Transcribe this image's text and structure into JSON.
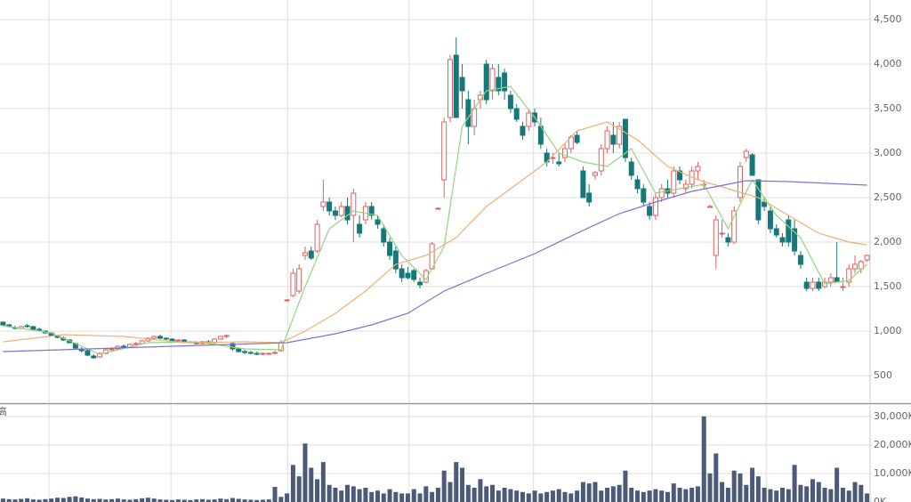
{
  "chart_data": [
    {
      "type": "candlestick",
      "xlim": [
        -0.5,
        143.5
      ],
      "ylim": [
        200,
        4720
      ],
      "xticks": [
        7.6,
        27.8,
        47.1,
        67.2,
        87.8,
        107.4,
        126.3
      ],
      "yticks": [
        500,
        {
          "value": 1000,
          "label": "1,000"
        },
        {
          "value": 1500,
          "label": "1,500"
        },
        {
          "value": 2000,
          "label": "2,000"
        },
        {
          "value": 2500,
          "label": "2,500"
        },
        {
          "value": 3000,
          "label": "3,000"
        },
        {
          "value": 3500,
          "label": "3,500"
        },
        {
          "value": 4000,
          "label": "4,000"
        },
        {
          "value": 4500,
          "label": "4,500"
        }
      ],
      "grid": true,
      "up_color": "#e06060",
      "down_color": "#17787a",
      "ohlc": [
        [
          1100,
          1110,
          1060,
          1070
        ],
        [
          1070,
          1080,
          1040,
          1050
        ],
        [
          1040,
          1060,
          1020,
          1030
        ],
        [
          1030,
          1060,
          1020,
          1050
        ],
        [
          1060,
          1080,
          1040,
          1050
        ],
        [
          1050,
          1060,
          1010,
          1020
        ],
        [
          1020,
          1040,
          1000,
          1010
        ],
        [
          1000,
          1010,
          970,
          980
        ],
        [
          980,
          990,
          940,
          950
        ],
        [
          950,
          960,
          920,
          930
        ],
        [
          920,
          940,
          890,
          900
        ],
        [
          900,
          910,
          860,
          870
        ],
        [
          860,
          870,
          800,
          810
        ],
        [
          800,
          820,
          760,
          780
        ],
        [
          780,
          790,
          720,
          730
        ],
        [
          720,
          740,
          690,
          700
        ],
        [
          710,
          760,
          700,
          750
        ],
        [
          750,
          800,
          740,
          790
        ],
        [
          790,
          820,
          770,
          800
        ],
        [
          800,
          840,
          790,
          830
        ],
        [
          830,
          850,
          810,
          820
        ],
        [
          820,
          860,
          810,
          850
        ],
        [
          850,
          880,
          830,
          860
        ],
        [
          860,
          900,
          850,
          890
        ],
        [
          890,
          930,
          880,
          920
        ],
        [
          920,
          950,
          900,
          940
        ],
        [
          940,
          960,
          910,
          920
        ],
        [
          920,
          930,
          900,
          910
        ],
        [
          910,
          920,
          880,
          890
        ],
        [
          890,
          910,
          870,
          900
        ],
        [
          900,
          910,
          870,
          880
        ],
        [
          880,
          890,
          860,
          870
        ],
        [
          870,
          880,
          850,
          860
        ],
        [
          860,
          890,
          850,
          880
        ],
        [
          880,
          900,
          860,
          870
        ],
        [
          870,
          920,
          860,
          910
        ],
        [
          910,
          950,
          900,
          940
        ],
        [
          940,
          960,
          920,
          950
        ],
        [
          860,
          880,
          780,
          800
        ],
        [
          800,
          810,
          760,
          770
        ],
        [
          770,
          790,
          740,
          760
        ],
        [
          760,
          780,
          740,
          750
        ],
        [
          750,
          770,
          730,
          740
        ],
        [
          740,
          760,
          730,
          750
        ],
        [
          750,
          760,
          740,
          750
        ],
        [
          750,
          780,
          740,
          760
        ],
        [
          780,
          900,
          770,
          870
        ],
        [
          1350,
          1360,
          1340,
          1350
        ],
        [
          1400,
          1700,
          1380,
          1650
        ],
        [
          1450,
          1750,
          1420,
          1700
        ],
        [
          1850,
          1950,
          1800,
          1880
        ],
        [
          1900,
          1950,
          1800,
          1820
        ],
        [
          1900,
          2250,
          1880,
          2200
        ],
        [
          2400,
          2700,
          2350,
          2450
        ],
        [
          2450,
          2500,
          2300,
          2350
        ],
        [
          2350,
          2400,
          2250,
          2300
        ],
        [
          2300,
          2450,
          2280,
          2400
        ],
        [
          2400,
          2500,
          2200,
          2250
        ],
        [
          2300,
          2600,
          2000,
          2550
        ],
        [
          2200,
          2300,
          2050,
          2100
        ],
        [
          2250,
          2450,
          2200,
          2400
        ],
        [
          2400,
          2450,
          2250,
          2300
        ],
        [
          2250,
          2300,
          2150,
          2200
        ],
        [
          2150,
          2200,
          1950,
          2000
        ],
        [
          2000,
          2050,
          1800,
          1850
        ],
        [
          1900,
          1950,
          1650,
          1700
        ],
        [
          1700,
          1750,
          1550,
          1600
        ],
        [
          1650,
          1720,
          1580,
          1600
        ],
        [
          1680,
          1700,
          1550,
          1580
        ],
        [
          1550,
          1600,
          1480,
          1520
        ],
        [
          1550,
          1700,
          1540,
          1680
        ],
        [
          1700,
          2000,
          1690,
          1980
        ],
        [
          2380,
          2390,
          2370,
          2380
        ],
        [
          2700,
          3400,
          2500,
          3350
        ],
        [
          3400,
          4100,
          3350,
          4050
        ],
        [
          4100,
          4300,
          3400,
          3400
        ],
        [
          3850,
          4000,
          3500,
          3700
        ],
        [
          3600,
          3700,
          3100,
          3300
        ],
        [
          3300,
          3600,
          3200,
          3500
        ],
        [
          3600,
          3700,
          3500,
          3650
        ],
        [
          4000,
          4050,
          3550,
          3600
        ],
        [
          3700,
          4000,
          3600,
          3950
        ],
        [
          3850,
          4000,
          3650,
          3700
        ],
        [
          3900,
          3950,
          3600,
          3700
        ],
        [
          3650,
          3700,
          3450,
          3500
        ],
        [
          3500,
          3550,
          3350,
          3380
        ],
        [
          3300,
          3350,
          3150,
          3200
        ],
        [
          3300,
          3500,
          3250,
          3450
        ],
        [
          3450,
          3500,
          3300,
          3350
        ],
        [
          3300,
          3400,
          3050,
          3100
        ],
        [
          3000,
          3050,
          2850,
          2900
        ],
        [
          2950,
          3000,
          2880,
          2950
        ],
        [
          2900,
          3000,
          2850,
          2880
        ],
        [
          2950,
          3100,
          2900,
          3050
        ],
        [
          3050,
          3200,
          3000,
          3180
        ],
        [
          3200,
          3250,
          3100,
          3120
        ],
        [
          2800,
          2850,
          2500,
          2500
        ],
        [
          2550,
          2650,
          2400,
          2450
        ],
        [
          2750,
          2800,
          2700,
          2780
        ],
        [
          2800,
          3100,
          2750,
          3050
        ],
        [
          3050,
          3300,
          3000,
          3250
        ],
        [
          3200,
          3350,
          3000,
          3100
        ],
        [
          3100,
          3350,
          3050,
          3300
        ],
        [
          3380,
          3380,
          2900,
          2950
        ],
        [
          2900,
          2950,
          2700,
          2750
        ],
        [
          2700,
          2750,
          2550,
          2600
        ],
        [
          2600,
          2650,
          2400,
          2450
        ],
        [
          2400,
          2450,
          2250,
          2300
        ],
        [
          2300,
          2550,
          2250,
          2500
        ],
        [
          2500,
          2650,
          2450,
          2600
        ],
        [
          2600,
          2700,
          2500,
          2550
        ],
        [
          2550,
          2850,
          2500,
          2800
        ],
        [
          2800,
          2850,
          2650,
          2700
        ],
        [
          2600,
          2700,
          2550,
          2650
        ],
        [
          2650,
          2850,
          2600,
          2800
        ],
        [
          2800,
          2900,
          2700,
          2850
        ],
        [
          2650,
          2700,
          2600,
          2650
        ],
        [
          2400,
          2420,
          2390,
          2400
        ],
        [
          1850,
          2300,
          1700,
          2250
        ],
        [
          2100,
          2250,
          2050,
          2100
        ],
        [
          2050,
          2100,
          1950,
          2000
        ],
        [
          2000,
          2400,
          1980,
          2350
        ],
        [
          2500,
          2900,
          2450,
          2850
        ],
        [
          2950,
          3050,
          2900,
          3020
        ],
        [
          2980,
          3000,
          2750,
          2750
        ],
        [
          2700,
          2700,
          2200,
          2250
        ],
        [
          2450,
          2500,
          2350,
          2400
        ],
        [
          2350,
          2400,
          2100,
          2150
        ],
        [
          2150,
          2200,
          2050,
          2080
        ],
        [
          2050,
          2100,
          1950,
          2000
        ],
        [
          2250,
          2300,
          1950,
          2000
        ],
        [
          2150,
          2250,
          1850,
          1900
        ],
        [
          1850,
          1900,
          1700,
          1750
        ],
        [
          1550,
          1600,
          1450,
          1480
        ],
        [
          1480,
          1600,
          1450,
          1550
        ],
        [
          1550,
          1600,
          1450,
          1480
        ],
        [
          1500,
          1600,
          1480,
          1550
        ],
        [
          1550,
          1650,
          1500,
          1600
        ],
        [
          1600,
          2000,
          1550,
          1550
        ],
        [
          1500,
          1600,
          1450,
          1500
        ],
        [
          1550,
          1750,
          1500,
          1700
        ],
        [
          1700,
          1850,
          1650,
          1750
        ],
        [
          1700,
          1800,
          1650,
          1780
        ],
        [
          1800,
          1860,
          1780,
          1850
        ]
      ],
      "series": [
        {
          "color": "#8fd67f",
          "x": [
            0,
            8,
            16,
            24,
            32,
            40,
            46,
            50,
            54,
            58,
            62,
            66,
            70,
            73,
            76,
            80,
            84,
            88,
            92,
            96,
            100,
            104,
            108,
            112,
            116,
            120,
            124,
            128,
            132,
            136,
            140,
            143
          ],
          "values": [
            1060,
            980,
            740,
            870,
            880,
            800,
            790,
            1500,
            2150,
            2350,
            2300,
            1850,
            1580,
            1950,
            3300,
            3700,
            3750,
            3400,
            3000,
            2900,
            2850,
            3050,
            2550,
            2600,
            2650,
            2150,
            2700,
            2300,
            2050,
            1530,
            1570,
            1750
          ]
        },
        {
          "color": "#f0b070",
          "x": [
            0,
            10,
            20,
            30,
            40,
            46,
            50,
            55,
            60,
            65,
            70,
            75,
            80,
            85,
            90,
            95,
            100,
            105,
            110,
            115,
            120,
            125,
            130,
            135,
            140,
            143
          ],
          "values": [
            880,
            960,
            940,
            870,
            880,
            870,
            1000,
            1200,
            1450,
            1750,
            1850,
            2050,
            2400,
            2650,
            2900,
            3250,
            3350,
            3150,
            2850,
            2700,
            2600,
            2500,
            2300,
            2100,
            2000,
            1970
          ]
        },
        {
          "color": "#8070d0",
          "x": [
            0,
            47,
            55,
            61,
            67,
            73,
            80,
            88,
            95,
            102,
            108,
            114,
            123,
            130,
            143
          ],
          "values": [
            770,
            870,
            970,
            1070,
            1200,
            1450,
            1650,
            1870,
            2100,
            2320,
            2450,
            2570,
            2690,
            2680,
            2640
          ]
        }
      ]
    },
    {
      "type": "bar",
      "label": "高",
      "xlim": [
        -0.5,
        143.5
      ],
      "ylim": [
        0,
        34000
      ],
      "color": "#4a5a78",
      "xticks": [
        7.6,
        27.8,
        47.1,
        67.2,
        87.8,
        107.4,
        126.3
      ],
      "yticks": [
        {
          "value": 0,
          "label": "0K"
        },
        {
          "value": 10000,
          "label": "10,000K"
        },
        {
          "value": 20000,
          "label": "20,000K"
        },
        {
          "value": 30000,
          "label": "30,000K"
        }
      ],
      "values": [
        1200,
        1000,
        900,
        1100,
        1300,
        900,
        800,
        1000,
        1200,
        1500,
        1400,
        1800,
        2000,
        1600,
        1200,
        1000,
        1100,
        900,
        1000,
        1200,
        900,
        800,
        1000,
        1300,
        1500,
        1200,
        900,
        800,
        700,
        900,
        800,
        700,
        900,
        1000,
        800,
        900,
        1200,
        1000,
        1400,
        1100,
        900,
        800,
        700,
        800,
        900,
        5300,
        1800,
        3000,
        13000,
        9000,
        20500,
        12000,
        8000,
        14000,
        6000,
        5000,
        4000,
        6000,
        5500,
        4500,
        5000,
        3500,
        4000,
        3000,
        4500,
        3500,
        3000,
        3000,
        4500,
        3000,
        5500,
        3500,
        5000,
        11000,
        7000,
        14000,
        12000,
        6000,
        5000,
        8000,
        5500,
        6000,
        4000,
        5000,
        4500,
        4000,
        3500,
        3000,
        4000,
        3000,
        3500,
        4000,
        4500,
        3500,
        3000,
        4000,
        7000,
        6500,
        7000,
        4000,
        5000,
        5500,
        6000,
        11000,
        5000,
        4000,
        3500,
        4000,
        4500,
        4000,
        3500,
        6500,
        5000,
        4500,
        5000,
        5500,
        30000,
        10000,
        17000,
        7000,
        5000,
        11000,
        10000,
        6000,
        12000,
        9000,
        5000,
        4500,
        4000,
        5000,
        4500,
        13000,
        6000,
        5500,
        8000,
        7000,
        5000,
        4500,
        12000,
        5000,
        4000,
        7000,
        6000,
        3000
      ]
    }
  ]
}
